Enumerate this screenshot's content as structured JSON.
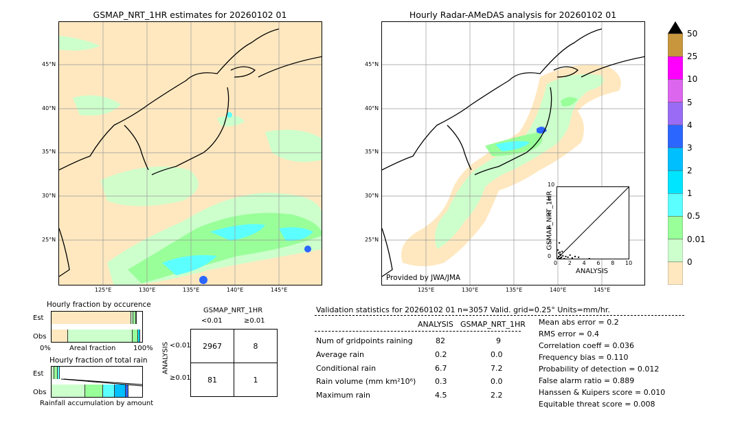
{
  "left_map": {
    "title": "GSMAP_NRT_1HR estimates for 20260102 01",
    "lat_labels": [
      "45°N",
      "40°N",
      "35°N",
      "30°N",
      "25°N"
    ],
    "lon_labels": [
      "125°E",
      "130°E",
      "135°E",
      "140°E",
      "145°E"
    ]
  },
  "right_map": {
    "title": "Hourly Radar-AMeDAS analysis for 20260102 01",
    "lat_labels": [
      "45°N",
      "40°N",
      "35°N",
      "30°N",
      "25°N"
    ],
    "lon_labels": [
      "125°E",
      "130°E",
      "135°E",
      "140°E",
      "145°E"
    ],
    "credit": "Provided by JWA/JMA"
  },
  "colorbar": {
    "labels": [
      "50",
      "25",
      "10",
      "5",
      "4",
      "3",
      "2",
      "1",
      "0.5",
      "0.01",
      "0"
    ],
    "colors": [
      "#c8963c",
      "#ff00ff",
      "#dd66ee",
      "#9a6cf5",
      "#2b66ff",
      "#00bfff",
      "#00e5ff",
      "#5cffff",
      "#99ff99",
      "#ccffcc",
      "#ffe8bf"
    ]
  },
  "chart_data": [
    {
      "type": "scatter",
      "title": "",
      "xlabel": "ANALYSIS",
      "ylabel": "GSMAP_NRT_1HR",
      "xlim": [
        0,
        10
      ],
      "ylim": [
        0,
        10
      ],
      "x_ticks": [
        "0",
        "2",
        "4",
        "6",
        "8",
        "10"
      ],
      "y_ticks": [
        "0",
        "2",
        "4",
        "6",
        "8",
        "10"
      ],
      "diagonal_line": true,
      "points": [
        [
          0.2,
          0.3
        ],
        [
          0.3,
          0.0
        ],
        [
          0.4,
          0.6
        ],
        [
          0.5,
          0.1
        ],
        [
          0.6,
          0.2
        ],
        [
          0.8,
          0.4
        ],
        [
          1.0,
          0.0
        ],
        [
          1.2,
          0.3
        ],
        [
          1.5,
          0.2
        ],
        [
          0.1,
          1.2
        ],
        [
          0.2,
          0.8
        ],
        [
          0.3,
          2.2
        ],
        [
          0.4,
          0.9
        ],
        [
          2.1,
          0.1
        ],
        [
          3.0,
          0.2
        ],
        [
          4.5,
          0.0
        ],
        [
          0.7,
          1.0
        ],
        [
          1.8,
          0.5
        ],
        [
          2.5,
          0.3
        ],
        [
          0.5,
          0.5
        ]
      ]
    },
    {
      "type": "bar",
      "title": "Hourly fraction by occurence",
      "categories": [
        "Est",
        "Obs"
      ],
      "series": [
        {
          "color": "#ffe8bf",
          "values": [
            0.88,
            0.18
          ]
        },
        {
          "color": "#ccffcc",
          "values": [
            0.02,
            0.71
          ]
        },
        {
          "color": "#99ff99",
          "values": [
            0.03,
            0.06
          ]
        },
        {
          "color": "#00e5ff",
          "values": [
            0.01,
            0.02
          ]
        }
      ],
      "xlabel": "Areal fraction",
      "x_tick_labels": [
        "0%",
        "100%"
      ]
    },
    {
      "type": "bar",
      "title": "Hourly fraction of total rain",
      "categories": [
        "Est",
        "Obs"
      ],
      "series": [
        {
          "color": "#ccffcc",
          "values": [
            0.03,
            0.37
          ]
        },
        {
          "color": "#99ff99",
          "values": [
            0.04,
            0.2
          ]
        },
        {
          "color": "#5cffff",
          "values": [
            0.02,
            0.13
          ]
        },
        {
          "color": "#00bfff",
          "values": [
            0.0,
            0.12
          ]
        },
        {
          "color": "#2b66ff",
          "values": [
            0.0,
            0.03
          ]
        }
      ],
      "xlabel": "Rainfall accumulation by amount"
    }
  ],
  "contingency": {
    "col_title": "GSMAP_NRT_1HR",
    "col_labels": [
      "<0.01",
      "≥0.01"
    ],
    "row_title": "ANALYSIS",
    "row_labels": [
      "<0.01",
      "≥0.01"
    ],
    "cells": [
      [
        "2967",
        "8"
      ],
      [
        "81",
        "1"
      ]
    ]
  },
  "validation": {
    "header": "Validation statistics for 20260102 01  n=3057 Valid. grid=0.25° Units=mm/hr.",
    "col1": "ANALYSIS",
    "col2": "GSMAP_NRT_1HR",
    "rows": [
      {
        "label": "Num of gridpoints raining",
        "a": "82",
        "g": "9"
      },
      {
        "label": "Average rain",
        "a": "0.2",
        "g": "0.0"
      },
      {
        "label": "Conditional rain",
        "a": "6.7",
        "g": "7.2"
      },
      {
        "label": "Rain volume (mm km²10⁶)",
        "a": "0.3",
        "g": "0.0"
      },
      {
        "label": "Maximum rain",
        "a": "4.5",
        "g": "2.2"
      }
    ],
    "scores": [
      "Mean abs error =    0.2",
      "RMS error =    0.4",
      "Correlation coeff =  0.036",
      "Frequency bias =  0.110",
      "Probability of detection =  0.012",
      "False alarm ratio =  0.889",
      "Hanssen & Kuipers score =  0.010",
      "Equitable threat score =  0.008"
    ]
  }
}
